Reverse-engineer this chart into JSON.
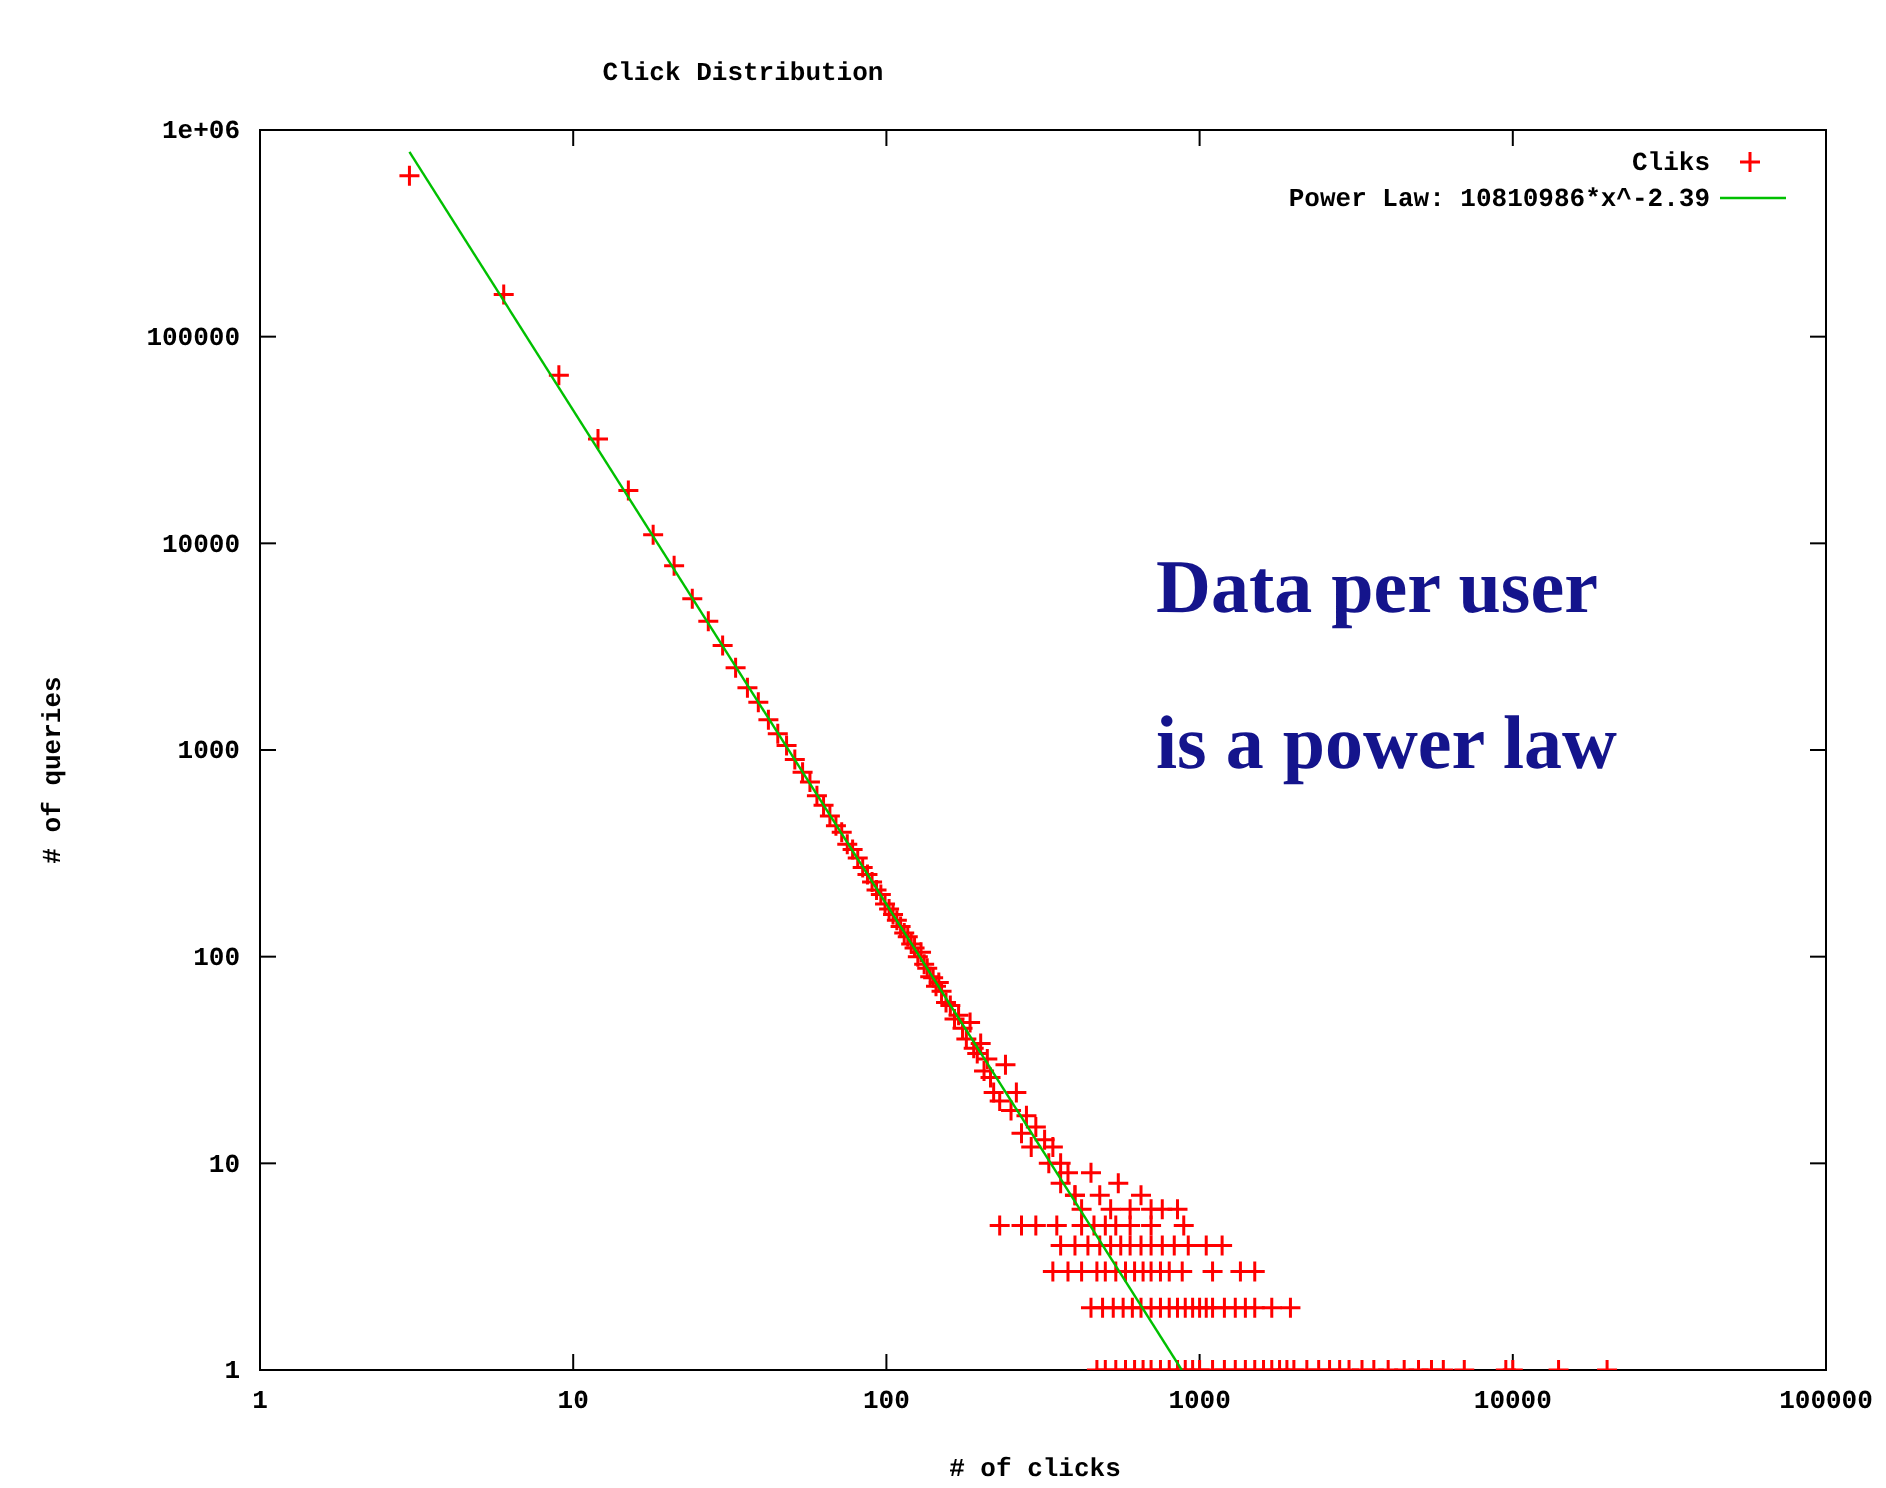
{
  "chart_data": {
    "type": "scatter",
    "title": "Click Distribution",
    "xlabel": "# of clicks",
    "ylabel": "# of queries",
    "log": "xy",
    "grid": false,
    "legend": "top right",
    "marker": "cross",
    "xlim": [
      1,
      100000
    ],
    "ylim": [
      1,
      1000000
    ],
    "xticks": [
      1,
      10,
      100,
      1000,
      10000,
      100000
    ],
    "yticks": [
      1,
      10,
      100,
      1000,
      10000,
      100000,
      {
        "value": 1000000,
        "label": "1e+06"
      }
    ],
    "annotations": [
      "Data per user",
      "is a power law"
    ],
    "series": [
      {
        "name": "Cliks",
        "color": "#ff0000",
        "x": [
          3,
          6,
          9,
          12,
          15,
          18,
          21,
          24,
          27,
          30,
          33,
          36,
          39,
          42,
          45,
          48,
          51,
          54,
          57,
          60,
          63,
          66,
          69,
          72,
          75,
          78,
          81,
          84,
          87,
          90,
          93,
          96,
          99,
          102,
          105,
          108,
          111,
          114,
          117,
          120,
          123,
          126,
          129,
          132,
          135,
          138,
          141,
          144,
          147,
          150,
          155,
          160,
          165,
          170,
          175,
          180,
          185,
          190,
          195,
          200,
          205,
          210,
          215,
          220,
          230,
          240,
          250,
          260,
          270,
          280,
          290,
          300,
          320,
          340,
          360,
          380,
          400,
          330,
          360,
          400,
          420,
          450,
          480,
          520,
          550,
          600,
          650,
          700,
          760,
          850,
          230,
          270,
          300,
          350,
          420,
          460,
          500,
          540,
          600,
          700,
          890,
          360,
          400,
          440,
          480,
          520,
          560,
          600,
          650,
          700,
          760,
          830,
          920,
          1050,
          1180,
          340,
          380,
          420,
          470,
          500,
          540,
          580,
          620,
          660,
          700,
          750,
          800,
          880,
          1100,
          1350,
          1500,
          450,
          490,
          530,
          570,
          610,
          650,
          700,
          750,
          800,
          850,
          900,
          950,
          1000,
          1050,
          1100,
          1200,
          1300,
          1400,
          1500,
          1700,
          1950,
          470,
          500,
          540,
          580,
          620,
          660,
          700,
          750,
          800,
          850,
          900,
          950,
          1000,
          1100,
          1200,
          1300,
          1400,
          1500,
          1600,
          1700,
          1800,
          1900,
          2000,
          2200,
          2400,
          2600,
          2800,
          3000,
          3300,
          3600,
          4000,
          4500,
          5000,
          5500,
          6000,
          7000,
          9500,
          10000,
          14000,
          20000
        ],
        "values": [
          600000,
          160000,
          65000,
          32000,
          18000,
          11000,
          7800,
          5400,
          4200,
          3200,
          2500,
          2000,
          1700,
          1400,
          1200,
          1050,
          900,
          780,
          700,
          600,
          540,
          480,
          430,
          400,
          350,
          330,
          300,
          270,
          250,
          230,
          210,
          200,
          180,
          170,
          160,
          150,
          140,
          130,
          125,
          115,
          110,
          100,
          105,
          92,
          88,
          80,
          79,
          72,
          75,
          68,
          60,
          58,
          50,
          52,
          45,
          40,
          48,
          36,
          34,
          38,
          28,
          32,
          26,
          22,
          20,
          30,
          18,
          22,
          14,
          17,
          12,
          15,
          13,
          12,
          10,
          9,
          7,
          10,
          8,
          7,
          6,
          9,
          7,
          6,
          8,
          6,
          7,
          6,
          6,
          6,
          5,
          5,
          5,
          5,
          5,
          5,
          5,
          5,
          5,
          5,
          5,
          4,
          4,
          4,
          4,
          4,
          4,
          4,
          4,
          4,
          4,
          4,
          4,
          4,
          4,
          3,
          3,
          3,
          3,
          3,
          3,
          3,
          3,
          3,
          3,
          3,
          3,
          3,
          3,
          3,
          3,
          2,
          2,
          2,
          2,
          2,
          2,
          2,
          2,
          2,
          2,
          2,
          2,
          2,
          2,
          2,
          2,
          2,
          2,
          2,
          2,
          2,
          1,
          1,
          1,
          1,
          1,
          1,
          1,
          1,
          1,
          1,
          1,
          1,
          1,
          1,
          1,
          1,
          1,
          1,
          1,
          1,
          1,
          1,
          1,
          1,
          1,
          1,
          1,
          1,
          1,
          1,
          1,
          1,
          1,
          1,
          1,
          1,
          1,
          1,
          1,
          1
        ]
      },
      {
        "name": "Power Law: 10810986*x^-2.39",
        "type": "line",
        "color": "#00c000",
        "marker": "none",
        "line_style": "solid",
        "x": [
          3,
          877
        ],
        "values": [
          782800,
          1.0
        ]
      }
    ]
  }
}
